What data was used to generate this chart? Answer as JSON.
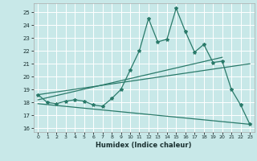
{
  "xlabel": "Humidex (Indice chaleur)",
  "bg_color": "#c8e8e8",
  "grid_color": "#ffffff",
  "line_color": "#2a7a6a",
  "xlim": [
    -0.5,
    23.5
  ],
  "ylim": [
    15.7,
    25.7
  ],
  "yticks": [
    16,
    17,
    18,
    19,
    20,
    21,
    22,
    23,
    24,
    25
  ],
  "xticks": [
    0,
    1,
    2,
    3,
    4,
    5,
    6,
    7,
    8,
    9,
    10,
    11,
    12,
    13,
    14,
    15,
    16,
    17,
    18,
    19,
    20,
    21,
    22,
    23
  ],
  "main_x": [
    0,
    1,
    2,
    3,
    4,
    5,
    6,
    7,
    8,
    9,
    10,
    11,
    12,
    13,
    14,
    15,
    16,
    17,
    18,
    19,
    20,
    21,
    22,
    23
  ],
  "main_y": [
    18.6,
    18.0,
    17.9,
    18.1,
    18.2,
    18.1,
    17.8,
    17.7,
    18.3,
    19.0,
    20.5,
    22.0,
    24.5,
    22.7,
    22.9,
    25.3,
    23.5,
    21.9,
    22.5,
    21.1,
    21.2,
    19.0,
    17.8,
    16.3
  ],
  "trend1_x": [
    0,
    20
  ],
  "trend1_y": [
    18.2,
    21.5
  ],
  "trend2_x": [
    0,
    23
  ],
  "trend2_y": [
    18.6,
    21.0
  ],
  "trend3_x": [
    0,
    23
  ],
  "trend3_y": [
    17.9,
    16.3
  ]
}
